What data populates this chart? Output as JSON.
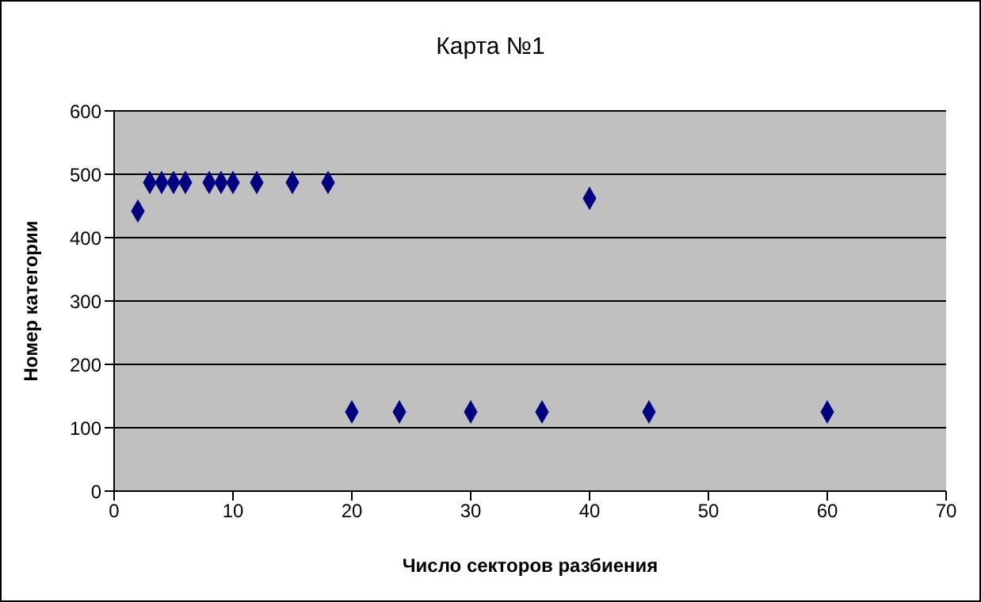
{
  "chart_data": {
    "type": "scatter",
    "title": "Карта №1",
    "xlabel": "Число секторов разбиения",
    "ylabel": "Номер категории",
    "x": [
      2,
      3,
      4,
      5,
      6,
      8,
      9,
      10,
      12,
      15,
      18,
      20,
      24,
      30,
      36,
      40,
      45,
      60
    ],
    "values": [
      442,
      487,
      487,
      487,
      487,
      487,
      487,
      487,
      487,
      487,
      487,
      125,
      125,
      125,
      125,
      462,
      125,
      125
    ],
    "color": "#000080",
    "marker": "diamond",
    "grid": "y",
    "xlim": [
      0,
      70
    ],
    "xticks": [
      0,
      10,
      20,
      30,
      40,
      50,
      60,
      70
    ],
    "ylim": [
      0,
      600
    ],
    "yticks": [
      0,
      100,
      200,
      300,
      400,
      500,
      600
    ]
  }
}
